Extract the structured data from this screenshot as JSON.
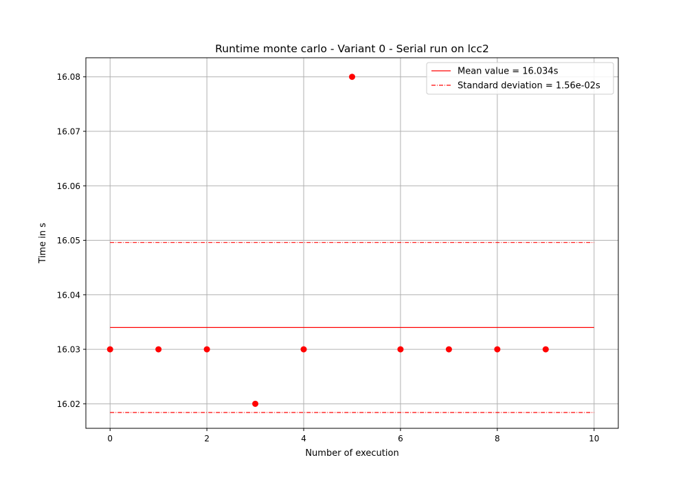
{
  "chart_data": {
    "type": "scatter",
    "title": "Runtime monte carlo - Variant 0 - Serial run on lcc2",
    "xlabel": "Number of execution",
    "ylabel": "Time in s",
    "xlim": [
      -0.5,
      10.5
    ],
    "ylim": [
      16.0155,
      16.0835
    ],
    "xticks": [
      0,
      2,
      4,
      6,
      8,
      10
    ],
    "xtick_labels": [
      "0",
      "2",
      "4",
      "6",
      "8",
      "10"
    ],
    "yticks": [
      16.02,
      16.03,
      16.04,
      16.05,
      16.06,
      16.07,
      16.08
    ],
    "ytick_labels": [
      "16.02",
      "16.03",
      "16.04",
      "16.05",
      "16.06",
      "16.07",
      "16.08"
    ],
    "grid": true,
    "legend_position": "top-right",
    "colors": {
      "series": "#ff0000",
      "grid": "#b0b0b0",
      "axes": "#000000"
    },
    "points": {
      "x": [
        0,
        1,
        2,
        3,
        4,
        5,
        6,
        7,
        8,
        9
      ],
      "y": [
        16.03,
        16.03,
        16.03,
        16.02,
        16.03,
        16.08,
        16.03,
        16.03,
        16.03,
        16.03
      ]
    },
    "lines": [
      {
        "label": "Mean value = 16.034s",
        "style": "solid",
        "x": [
          0,
          10
        ],
        "y": 16.034
      },
      {
        "label": "Standard deviation = 1.56e-02s",
        "style": "dashdot",
        "x": [
          0,
          10
        ],
        "y": 16.0496
      },
      {
        "label": "",
        "style": "dashdot",
        "x": [
          0,
          10
        ],
        "y": 16.0184
      }
    ]
  }
}
